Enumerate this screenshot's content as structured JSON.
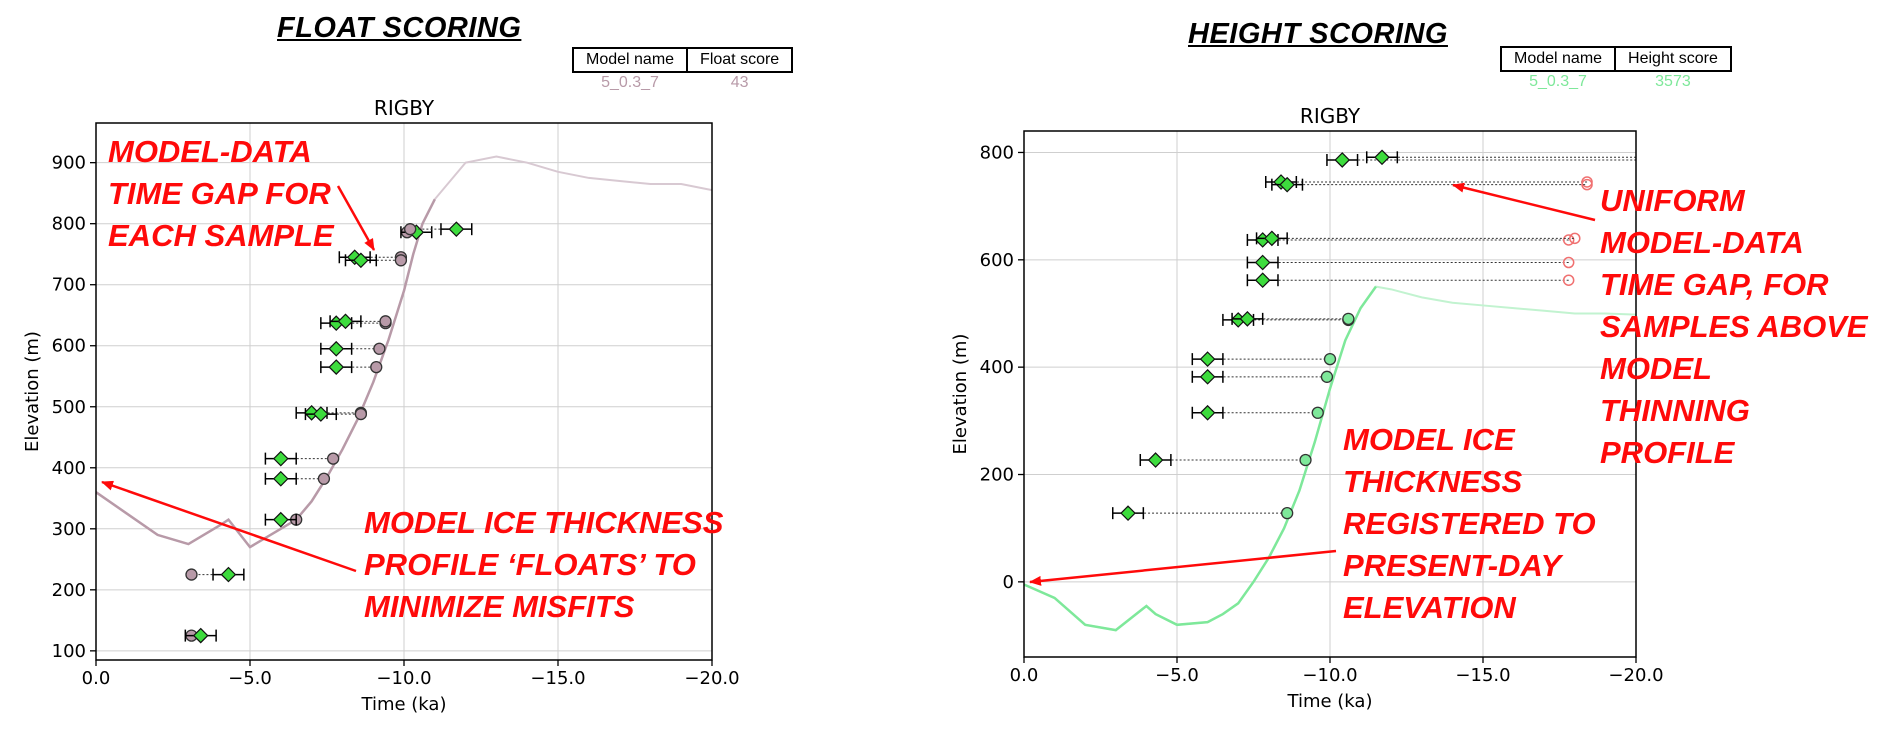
{
  "colors": {
    "float_model": "#b89aa8",
    "height_model": "#7ee89a",
    "sample": "#3ddc3d",
    "annotation": "#ff0a0a"
  },
  "headings": {
    "left": "FLOAT SCORING",
    "right": "HEIGHT SCORING"
  },
  "score_tables": {
    "left": {
      "col1": "Model name",
      "col2": "Float score",
      "model": "5_0.3_7",
      "score": "43"
    },
    "right": {
      "col1": "Model name",
      "col2": "Height score",
      "model": "5_0.3_7",
      "score": "3573"
    }
  },
  "annotations": {
    "left_gap": [
      "MODEL-DATA",
      "TIME GAP FOR",
      "EACH SAMPLE"
    ],
    "left_float": [
      "MODEL ICE THICKNESS",
      "PROFILE ‘FLOATS’ TO",
      "MINIMIZE MISFITS"
    ],
    "right_gap": [
      "UNIFORM",
      "MODEL-DATA",
      "TIME GAP, FOR",
      "SAMPLES ABOVE",
      "MODEL",
      "THINNING",
      "PROFILE"
    ],
    "right_registered": [
      "MODEL ICE",
      "THICKNESS",
      "REGISTERED TO",
      "PRESENT-DAY",
      "ELEVATION"
    ]
  },
  "chart_data": [
    {
      "type": "scatter",
      "title": "RIGBY",
      "xlabel": "Time (ka)",
      "ylabel": "Elevation (m)",
      "xlim": [
        0,
        -20
      ],
      "ylim": [
        85,
        965
      ],
      "xticks": [
        "0.0",
        "−5.0",
        "−10.0",
        "−15.0",
        "−20.0"
      ],
      "xtick_values": [
        0,
        -5,
        -10,
        -15,
        -20
      ],
      "yticks": [
        "100",
        "200",
        "300",
        "400",
        "500",
        "600",
        "700",
        "800",
        "900"
      ],
      "ytick_values": [
        100,
        200,
        300,
        400,
        500,
        600,
        700,
        800,
        900
      ],
      "grid": true,
      "samples": [
        {
          "age": -3.4,
          "err": 0.5,
          "elevation": 125,
          "model_age": -3.1
        },
        {
          "age": -4.3,
          "err": 0.5,
          "elevation": 225,
          "model_age": -3.1
        },
        {
          "age": -6.0,
          "err": 0.5,
          "elevation": 315,
          "model_age": -6.5
        },
        {
          "age": -6.0,
          "err": 0.5,
          "elevation": 382,
          "model_age": -7.4
        },
        {
          "age": -6.0,
          "err": 0.5,
          "elevation": 415,
          "model_age": -7.7
        },
        {
          "age": -7.0,
          "err": 0.5,
          "elevation": 490,
          "model_age": -8.6
        },
        {
          "age": -7.3,
          "err": 0.5,
          "elevation": 488,
          "model_age": -8.6
        },
        {
          "age": -7.8,
          "err": 0.5,
          "elevation": 565,
          "model_age": -9.1
        },
        {
          "age": -7.8,
          "err": 0.5,
          "elevation": 595,
          "model_age": -9.2
        },
        {
          "age": -7.8,
          "err": 0.5,
          "elevation": 637,
          "model_age": -9.4
        },
        {
          "age": -8.1,
          "err": 0.5,
          "elevation": 640,
          "model_age": -9.4
        },
        {
          "age": -8.4,
          "err": 0.5,
          "elevation": 745,
          "model_age": -9.9
        },
        {
          "age": -8.6,
          "err": 0.5,
          "elevation": 740,
          "model_age": -9.9
        },
        {
          "age": -10.4,
          "err": 0.5,
          "elevation": 786,
          "model_age": -10.1
        },
        {
          "age": -11.7,
          "err": 0.5,
          "elevation": 791,
          "model_age": -10.2
        }
      ],
      "model_curve": [
        [
          0,
          360
        ],
        [
          1,
          325
        ],
        [
          2,
          290
        ],
        [
          3,
          275
        ],
        [
          4,
          305
        ],
        [
          4.3,
          315
        ],
        [
          5,
          270
        ],
        [
          6,
          300
        ],
        [
          6.5,
          315
        ],
        [
          7,
          345
        ],
        [
          7.5,
          385
        ],
        [
          8,
          430
        ],
        [
          8.5,
          480
        ],
        [
          9,
          540
        ],
        [
          9.5,
          610
        ],
        [
          10,
          690
        ],
        [
          10.3,
          750
        ],
        [
          10.6,
          800
        ],
        [
          11,
          840
        ],
        [
          12,
          900
        ],
        [
          13,
          910
        ],
        [
          14,
          900
        ],
        [
          15,
          885
        ],
        [
          16,
          875
        ],
        [
          17,
          870
        ],
        [
          18,
          865
        ],
        [
          19,
          865
        ],
        [
          20,
          855
        ]
      ],
      "model_present_until": 11.7
    },
    {
      "type": "scatter",
      "title": "RIGBY",
      "xlabel": "Time (ka)",
      "ylabel": "Elevation (m)",
      "xlim": [
        0,
        -20
      ],
      "ylim": [
        -140,
        840
      ],
      "xticks": [
        "0.0",
        "−5.0",
        "−10.0",
        "−15.0",
        "−20.0"
      ],
      "xtick_values": [
        0,
        -5,
        -10,
        -15,
        -20
      ],
      "yticks": [
        "0",
        "200",
        "400",
        "600",
        "800"
      ],
      "ytick_values": [
        0,
        200,
        400,
        600,
        800
      ],
      "grid": true,
      "samples": [
        {
          "age": -3.4,
          "err": 0.5,
          "elevation": 128,
          "model_age": -8.6
        },
        {
          "age": -4.3,
          "err": 0.5,
          "elevation": 227,
          "model_age": -9.2
        },
        {
          "age": -6.0,
          "err": 0.5,
          "elevation": 315,
          "model_age": -9.6
        },
        {
          "age": -6.0,
          "err": 0.5,
          "elevation": 382,
          "model_age": -9.9
        },
        {
          "age": -6.0,
          "err": 0.5,
          "elevation": 415,
          "model_age": -10.0
        },
        {
          "age": -7.0,
          "err": 0.5,
          "elevation": 488,
          "model_age": -10.6
        },
        {
          "age": -7.3,
          "err": 0.5,
          "elevation": 490,
          "model_age": -10.6
        },
        {
          "age": -7.8,
          "err": 0.5,
          "elevation": 562,
          "model_age": -17.8
        },
        {
          "age": -7.8,
          "err": 0.5,
          "elevation": 595,
          "model_age": -17.8
        },
        {
          "age": -7.8,
          "err": 0.5,
          "elevation": 637,
          "model_age": -17.8
        },
        {
          "age": -8.1,
          "err": 0.5,
          "elevation": 640,
          "model_age": -18.0
        },
        {
          "age": -8.4,
          "err": 0.5,
          "elevation": 745,
          "model_age": -18.4
        },
        {
          "age": -8.6,
          "err": 0.5,
          "elevation": 740,
          "model_age": -18.4
        },
        {
          "age": -10.4,
          "err": 0.5,
          "elevation": 786,
          "model_age": -20
        },
        {
          "age": -11.7,
          "err": 0.5,
          "elevation": 791,
          "model_age": -20
        }
      ],
      "model_curve": [
        [
          0,
          -5
        ],
        [
          1,
          -30
        ],
        [
          2,
          -80
        ],
        [
          3,
          -90
        ],
        [
          4,
          -45
        ],
        [
          4.3,
          -60
        ],
        [
          5,
          -80
        ],
        [
          6,
          -75
        ],
        [
          6.5,
          -60
        ],
        [
          7,
          -40
        ],
        [
          7.5,
          0
        ],
        [
          8,
          45
        ],
        [
          8.5,
          100
        ],
        [
          9,
          170
        ],
        [
          9.5,
          260
        ],
        [
          10,
          360
        ],
        [
          10.5,
          450
        ],
        [
          11,
          510
        ],
        [
          11.5,
          550
        ],
        [
          12,
          545
        ],
        [
          13,
          530
        ],
        [
          14,
          520
        ],
        [
          15,
          515
        ],
        [
          16,
          510
        ],
        [
          17,
          505
        ],
        [
          18,
          500
        ],
        [
          19,
          500
        ],
        [
          20,
          498
        ]
      ],
      "model_present_until": 11.7
    }
  ]
}
